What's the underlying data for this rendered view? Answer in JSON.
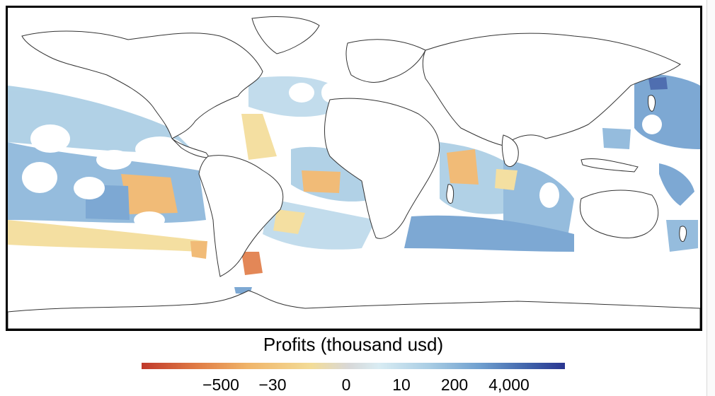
{
  "legend": {
    "title": "Profits (thousand usd)",
    "ticks": [
      "−500",
      "−30",
      "0",
      "10",
      "200",
      "4,000"
    ],
    "colors": [
      "#c0392b",
      "#e07b45",
      "#f0b469",
      "#f3dc97",
      "#d8d8d8",
      "#d9ecf3",
      "#a9cde4",
      "#6f9fcf",
      "#3d5fa8",
      "#2a3590"
    ]
  },
  "map": {
    "projection": "equirectangular",
    "land_fill": "#ffffff",
    "coastline_color": "#333333",
    "ocean_background": "#ffffff"
  }
}
